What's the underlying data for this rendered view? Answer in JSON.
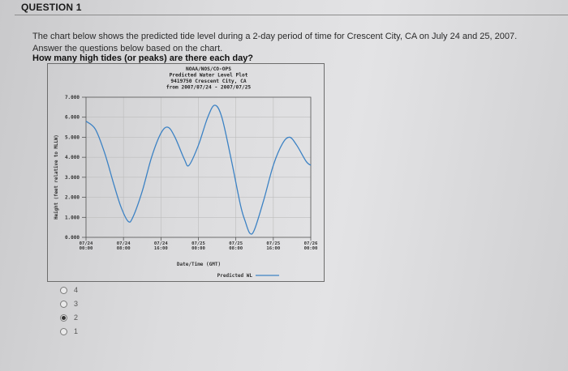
{
  "question": {
    "title": "QUESTION 1",
    "text": "The chart below shows the predicted tide level during a 2-day period of time for Crescent City, CA on July 24 and 25, 2007. Answer the questions below based on the chart.",
    "ask": "How many high tides (or peaks) are there each day?",
    "options": [
      {
        "label": "4",
        "selected": false
      },
      {
        "label": "3",
        "selected": false
      },
      {
        "label": "2",
        "selected": true
      },
      {
        "label": "1",
        "selected": false
      }
    ]
  },
  "chart_data": {
    "type": "line",
    "title_lines": [
      "NOAA/NOS/CO-OPS",
      "Predicted Water Level Plot",
      "9419750 Crescent City, CA",
      "from 2007/07/24 - 2007/07/25"
    ],
    "xlabel": "Date/Time (GMT)",
    "ylabel": "Height (feet relative to MLLW)",
    "ylim": [
      0,
      7
    ],
    "xlim_hours": [
      0,
      48
    ],
    "y_ticks": [
      "0.000",
      "1.000",
      "2.000",
      "3.000",
      "4.000",
      "5.000",
      "6.000",
      "7.000"
    ],
    "x_ticks": [
      {
        "hour": 0,
        "date": "07/24",
        "time": "00:00"
      },
      {
        "hour": 8,
        "date": "07/24",
        "time": "08:00"
      },
      {
        "hour": 16,
        "date": "07/24",
        "time": "16:00"
      },
      {
        "hour": 24,
        "date": "07/25",
        "time": "00:00"
      },
      {
        "hour": 32,
        "date": "07/25",
        "time": "08:00"
      },
      {
        "hour": 40,
        "date": "07/25",
        "time": "16:00"
      },
      {
        "hour": 48,
        "date": "07/26",
        "time": "00:00"
      }
    ],
    "legend": "Predicted WL",
    "grid": true,
    "line_color": "#3c82c4",
    "series": [
      {
        "points": [
          [
            0,
            5.8
          ],
          [
            2,
            5.4
          ],
          [
            4,
            4.2
          ],
          [
            6,
            2.6
          ],
          [
            7.5,
            1.5
          ],
          [
            9,
            0.8
          ],
          [
            10,
            1.0
          ],
          [
            12,
            2.3
          ],
          [
            14,
            4.0
          ],
          [
            16,
            5.2
          ],
          [
            17.5,
            5.5
          ],
          [
            19,
            5.0
          ],
          [
            21,
            3.9
          ],
          [
            22,
            3.6
          ],
          [
            24,
            4.6
          ],
          [
            26,
            6.0
          ],
          [
            27.5,
            6.6
          ],
          [
            29,
            6.0
          ],
          [
            31,
            3.9
          ],
          [
            33,
            1.6
          ],
          [
            34,
            0.8
          ],
          [
            35,
            0.2
          ],
          [
            36,
            0.4
          ],
          [
            38,
            1.9
          ],
          [
            40,
            3.6
          ],
          [
            42,
            4.7
          ],
          [
            43.5,
            5.0
          ],
          [
            45,
            4.6
          ],
          [
            47,
            3.8
          ],
          [
            48,
            3.6
          ]
        ]
      }
    ]
  }
}
